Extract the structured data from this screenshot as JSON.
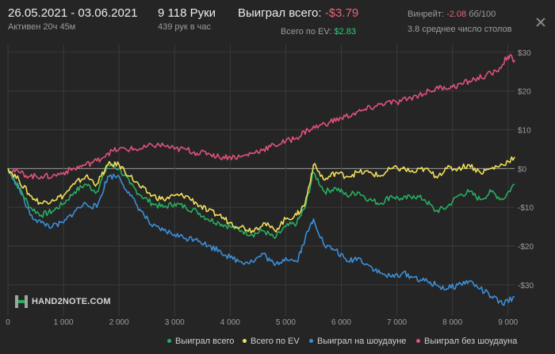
{
  "header": {
    "date_range": "26.05.2021 - 03.06.2021",
    "active_time": "Активен 20ч 45м",
    "hands": "9 118 Руки",
    "hands_per_hour": "439 рук в час",
    "won_total_label": "Выиграл всего:",
    "won_total_value": "-$3.79",
    "ev_label": "Всего по EV:",
    "ev_value": "$2.83",
    "winrate_label": "Винрейт:",
    "winrate_value": "-2.08",
    "winrate_unit": "бб/100",
    "avg_tables": "3.8 среднее число столов"
  },
  "colors": {
    "won_total": "#27ae60",
    "ev": "#f1e05a",
    "showdown": "#3a8fd9",
    "non_showdown": "#e0527a",
    "grid": "#3a3a3a",
    "zero_line": "#9a9a9a",
    "negative": "#e8637a",
    "positive": "#2ecc71"
  },
  "logo": {
    "text": "HAND2NOTE.COM",
    "icon": "hand2note-logo-icon"
  },
  "legend": [
    {
      "name": "Выиграл всего",
      "color": "#27ae60"
    },
    {
      "name": "Всего по EV",
      "color": "#f1e05a"
    },
    {
      "name": "Выиграл на шоудауне",
      "color": "#3a8fd9"
    },
    {
      "name": "Выиграл без шоудауна",
      "color": "#e0527a"
    }
  ],
  "chart_data": {
    "type": "line",
    "x_ticks": [
      "0",
      "1 000",
      "2 000",
      "3 000",
      "4 000",
      "5 000",
      "6 000",
      "7 000",
      "8 000",
      "9 000"
    ],
    "y_ticks": [
      "$30",
      "$20",
      "$10",
      "$0",
      "-$10",
      "-$20",
      "-$30"
    ],
    "xlim": [
      0,
      9118
    ],
    "ylim": [
      -38,
      32
    ],
    "grid": true,
    "legend_position": "bottom",
    "series": [
      {
        "name": "Выиграл всего",
        "x": [
          0,
          200,
          400,
          600,
          800,
          1000,
          1200,
          1400,
          1600,
          1800,
          2000,
          2200,
          2400,
          2600,
          2800,
          3000,
          3200,
          3400,
          3600,
          3800,
          4000,
          4200,
          4400,
          4600,
          4800,
          5000,
          5200,
          5350,
          5500,
          5700,
          5900,
          6100,
          6300,
          6500,
          6700,
          6900,
          7100,
          7300,
          7500,
          7700,
          7900,
          8100,
          8300,
          8500,
          8700,
          8900,
          9118
        ],
        "y": [
          0,
          -5,
          -10,
          -12,
          -11,
          -9,
          -6,
          -4,
          -6,
          1,
          0,
          -4,
          -7,
          -9,
          -10,
          -9,
          -10,
          -11,
          -13,
          -14,
          -15,
          -16,
          -17,
          -16,
          -18,
          -15,
          -14,
          -10,
          -1,
          -6,
          -5,
          -7,
          -6,
          -8,
          -9,
          -7,
          -8,
          -7,
          -8,
          -11,
          -10,
          -7,
          -6,
          -8,
          -6,
          -8,
          -4
        ]
      },
      {
        "name": "Всего по EV",
        "x": [
          0,
          200,
          400,
          600,
          800,
          1000,
          1200,
          1400,
          1600,
          1800,
          2000,
          2200,
          2400,
          2600,
          2800,
          3000,
          3200,
          3400,
          3600,
          3800,
          4000,
          4200,
          4400,
          4600,
          4800,
          5000,
          5200,
          5350,
          5500,
          5700,
          5900,
          6100,
          6300,
          6500,
          6700,
          6900,
          7100,
          7300,
          7500,
          7700,
          7900,
          8100,
          8300,
          8500,
          8700,
          8900,
          9118
        ],
        "y": [
          0,
          -3,
          -7,
          -9,
          -8,
          -7,
          -4,
          -2,
          -4,
          1,
          1,
          -2,
          -5,
          -7,
          -8,
          -7,
          -7,
          -9,
          -11,
          -12,
          -14,
          -15,
          -16,
          -14,
          -16,
          -13,
          -12,
          -9,
          1,
          -3,
          -1,
          -2,
          -1,
          -1,
          -2,
          0,
          0,
          -1,
          0,
          -2,
          0,
          0,
          1,
          -1,
          0,
          1,
          3
        ]
      },
      {
        "name": "Выиграл на шоудауне",
        "x": [
          0,
          200,
          400,
          600,
          800,
          1000,
          1200,
          1400,
          1600,
          1800,
          2000,
          2200,
          2400,
          2600,
          2800,
          3000,
          3200,
          3400,
          3600,
          3800,
          4000,
          4200,
          4400,
          4600,
          4800,
          5000,
          5200,
          5350,
          5500,
          5700,
          5900,
          6100,
          6300,
          6500,
          6700,
          6900,
          7100,
          7300,
          7500,
          7700,
          7900,
          8100,
          8300,
          8500,
          8700,
          8900,
          9118
        ],
        "y": [
          0,
          -5,
          -12,
          -14,
          -15,
          -14,
          -11,
          -9,
          -10,
          -2,
          -2,
          -7,
          -11,
          -15,
          -16,
          -17,
          -18,
          -18,
          -20,
          -21,
          -23,
          -24,
          -24,
          -22,
          -25,
          -23,
          -24,
          -18,
          -13,
          -20,
          -21,
          -24,
          -23,
          -25,
          -27,
          -28,
          -27,
          -28,
          -29,
          -30,
          -31,
          -30,
          -29,
          -31,
          -33,
          -35,
          -33
        ]
      },
      {
        "name": "Выиграл без шоудауна",
        "x": [
          0,
          200,
          400,
          600,
          800,
          1000,
          1200,
          1400,
          1600,
          1800,
          2000,
          2200,
          2400,
          2600,
          2800,
          3000,
          3200,
          3400,
          3600,
          3800,
          4000,
          4200,
          4400,
          4600,
          4800,
          5000,
          5200,
          5400,
          5600,
          5800,
          6000,
          6200,
          6400,
          6600,
          6800,
          7000,
          7200,
          7400,
          7600,
          7800,
          8000,
          8200,
          8400,
          8600,
          8800,
          9000,
          9118
        ],
        "y": [
          0,
          -1,
          -2,
          -2,
          -2,
          -1,
          0,
          1,
          2,
          4,
          5,
          5,
          5,
          6,
          6,
          5,
          5,
          4,
          4,
          3,
          3,
          3,
          4,
          5,
          6,
          7,
          8,
          10,
          11,
          12,
          13,
          14,
          15,
          16,
          17,
          17,
          18,
          19,
          20,
          21,
          21,
          22,
          23,
          24,
          25,
          29,
          28
        ]
      }
    ]
  }
}
